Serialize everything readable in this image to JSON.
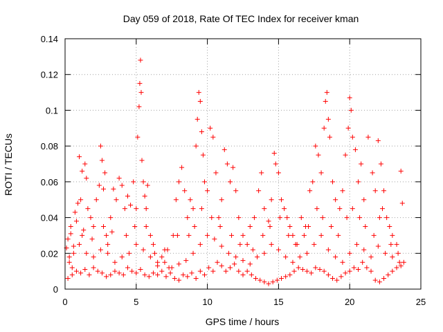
{
  "chart_data": {
    "type": "scatter",
    "title": "Day 059 of 2018, Rate Of TEC Index for receiver kman",
    "xlabel": "GPS time / hours",
    "ylabel": "ROTI / TECUs",
    "xlim": [
      0,
      25
    ],
    "ylim": [
      0,
      0.14
    ],
    "x_ticks": [
      0,
      5,
      10,
      15,
      20,
      25
    ],
    "y_ticks": [
      0,
      0.02,
      0.04,
      0.06,
      0.08,
      0.1,
      0.12,
      0.14
    ],
    "x_tick_labels": [
      "0",
      "5",
      "10",
      "15",
      "20",
      "25"
    ],
    "y_tick_labels": [
      "0",
      "0.02",
      "0.04",
      "0.06",
      "0.08",
      "0.1",
      "0.12",
      "0.14"
    ],
    "grid": true,
    "marker": "+",
    "marker_color": "#ff0000",
    "series": [
      {
        "name": "ROTI",
        "points": [
          [
            0.1,
            0.023
          ],
          [
            0.2,
            0.028
          ],
          [
            0.3,
            0.018
          ],
          [
            0.4,
            0.031
          ],
          [
            0.5,
            0.012
          ],
          [
            0.6,
            0.024
          ],
          [
            0.7,
            0.043
          ],
          [
            0.8,
            0.038
          ],
          [
            0.9,
            0.048
          ],
          [
            1.0,
            0.074
          ],
          [
            1.1,
            0.05
          ],
          [
            1.2,
            0.066
          ],
          [
            1.3,
            0.033
          ],
          [
            1.4,
            0.07
          ],
          [
            1.5,
            0.062
          ],
          [
            1.6,
            0.045
          ],
          [
            1.8,
            0.04
          ],
          [
            2.0,
            0.035
          ],
          [
            2.2,
            0.05
          ],
          [
            2.4,
            0.058
          ],
          [
            2.5,
            0.08
          ],
          [
            2.6,
            0.072
          ],
          [
            2.7,
            0.056
          ],
          [
            2.8,
            0.065
          ],
          [
            2.9,
            0.03
          ],
          [
            3.0,
            0.025
          ],
          [
            3.2,
            0.04
          ],
          [
            3.4,
            0.056
          ],
          [
            3.6,
            0.05
          ],
          [
            3.8,
            0.062
          ],
          [
            4.0,
            0.058
          ],
          [
            4.2,
            0.045
          ],
          [
            4.4,
            0.052
          ],
          [
            4.6,
            0.047
          ],
          [
            4.8,
            0.06
          ],
          [
            5.0,
            0.045
          ],
          [
            5.1,
            0.085
          ],
          [
            5.2,
            0.102
          ],
          [
            5.25,
            0.115
          ],
          [
            5.3,
            0.128
          ],
          [
            5.35,
            0.11
          ],
          [
            5.4,
            0.072
          ],
          [
            5.5,
            0.06
          ],
          [
            5.6,
            0.052
          ],
          [
            5.7,
            0.045
          ],
          [
            5.8,
            0.058
          ],
          [
            6.0,
            0.03
          ],
          [
            6.3,
            0.02
          ],
          [
            6.5,
            0.015
          ],
          [
            6.8,
            0.018
          ],
          [
            7.0,
            0.022
          ],
          [
            7.3,
            0.012
          ],
          [
            7.6,
            0.03
          ],
          [
            7.8,
            0.05
          ],
          [
            8.0,
            0.06
          ],
          [
            8.2,
            0.068
          ],
          [
            8.4,
            0.055
          ],
          [
            8.6,
            0.04
          ],
          [
            8.8,
            0.05
          ],
          [
            9.0,
            0.045
          ],
          [
            9.2,
            0.08
          ],
          [
            9.3,
            0.095
          ],
          [
            9.4,
            0.11
          ],
          [
            9.5,
            0.105
          ],
          [
            9.6,
            0.088
          ],
          [
            9.7,
            0.075
          ],
          [
            9.8,
            0.06
          ],
          [
            10.0,
            0.055
          ],
          [
            10.2,
            0.09
          ],
          [
            10.4,
            0.085
          ],
          [
            10.6,
            0.065
          ],
          [
            10.8,
            0.04
          ],
          [
            11.0,
            0.05
          ],
          [
            11.2,
            0.078
          ],
          [
            11.4,
            0.07
          ],
          [
            11.6,
            0.06
          ],
          [
            11.8,
            0.068
          ],
          [
            12.0,
            0.055
          ],
          [
            12.2,
            0.04
          ],
          [
            12.5,
            0.03
          ],
          [
            12.8,
            0.025
          ],
          [
            13.0,
            0.035
          ],
          [
            13.3,
            0.04
          ],
          [
            13.6,
            0.055
          ],
          [
            13.8,
            0.065
          ],
          [
            14.0,
            0.045
          ],
          [
            14.3,
            0.038
          ],
          [
            14.5,
            0.05
          ],
          [
            14.7,
            0.076
          ],
          [
            14.8,
            0.07
          ],
          [
            15.0,
            0.065
          ],
          [
            15.2,
            0.05
          ],
          [
            15.4,
            0.045
          ],
          [
            15.6,
            0.04
          ],
          [
            15.8,
            0.035
          ],
          [
            16.0,
            0.03
          ],
          [
            16.3,
            0.025
          ],
          [
            16.6,
            0.04
          ],
          [
            16.9,
            0.035
          ],
          [
            17.2,
            0.055
          ],
          [
            17.4,
            0.06
          ],
          [
            17.6,
            0.08
          ],
          [
            17.8,
            0.075
          ],
          [
            18.0,
            0.065
          ],
          [
            18.2,
            0.09
          ],
          [
            18.3,
            0.105
          ],
          [
            18.4,
            0.11
          ],
          [
            18.5,
            0.095
          ],
          [
            18.6,
            0.085
          ],
          [
            18.8,
            0.06
          ],
          [
            19.0,
            0.05
          ],
          [
            19.3,
            0.045
          ],
          [
            19.5,
            0.055
          ],
          [
            19.7,
            0.075
          ],
          [
            19.9,
            0.09
          ],
          [
            20.0,
            0.107
          ],
          [
            20.1,
            0.1
          ],
          [
            20.2,
            0.085
          ],
          [
            20.4,
            0.078
          ],
          [
            20.6,
            0.06
          ],
          [
            20.8,
            0.07
          ],
          [
            21.0,
            0.05
          ],
          [
            21.3,
            0.085
          ],
          [
            21.6,
            0.065
          ],
          [
            21.8,
            0.055
          ],
          [
            22.0,
            0.083
          ],
          [
            22.2,
            0.07
          ],
          [
            22.4,
            0.055
          ],
          [
            22.6,
            0.04
          ],
          [
            22.8,
            0.035
          ],
          [
            23.0,
            0.03
          ],
          [
            23.3,
            0.025
          ],
          [
            23.6,
            0.066
          ],
          [
            23.7,
            0.048
          ],
          [
            23.8,
            0.015
          ],
          [
            0.2,
            0.006
          ],
          [
            0.5,
            0.008
          ],
          [
            0.8,
            0.01
          ],
          [
            1.1,
            0.009
          ],
          [
            1.4,
            0.011
          ],
          [
            1.7,
            0.008
          ],
          [
            2.0,
            0.012
          ],
          [
            2.3,
            0.01
          ],
          [
            2.6,
            0.009
          ],
          [
            2.9,
            0.007
          ],
          [
            3.2,
            0.008
          ],
          [
            3.5,
            0.01
          ],
          [
            3.8,
            0.009
          ],
          [
            4.1,
            0.008
          ],
          [
            4.4,
            0.012
          ],
          [
            4.7,
            0.01
          ],
          [
            5.0,
            0.009
          ],
          [
            5.3,
            0.011
          ],
          [
            5.6,
            0.008
          ],
          [
            5.9,
            0.007
          ],
          [
            6.2,
            0.009
          ],
          [
            6.5,
            0.008
          ],
          [
            6.8,
            0.01
          ],
          [
            7.1,
            0.007
          ],
          [
            7.4,
            0.009
          ],
          [
            7.7,
            0.006
          ],
          [
            8.0,
            0.005
          ],
          [
            8.3,
            0.008
          ],
          [
            8.6,
            0.007
          ],
          [
            8.9,
            0.009
          ],
          [
            9.2,
            0.006
          ],
          [
            9.5,
            0.01
          ],
          [
            9.8,
            0.008
          ],
          [
            10.1,
            0.012
          ],
          [
            10.4,
            0.01
          ],
          [
            10.7,
            0.015
          ],
          [
            11.0,
            0.013
          ],
          [
            11.3,
            0.01
          ],
          [
            11.6,
            0.012
          ],
          [
            11.9,
            0.014
          ],
          [
            12.2,
            0.01
          ],
          [
            12.5,
            0.008
          ],
          [
            12.8,
            0.01
          ],
          [
            13.1,
            0.008
          ],
          [
            13.4,
            0.006
          ],
          [
            13.7,
            0.005
          ],
          [
            14.0,
            0.004
          ],
          [
            14.3,
            0.003
          ],
          [
            14.6,
            0.004
          ],
          [
            14.9,
            0.005
          ],
          [
            15.2,
            0.006
          ],
          [
            15.5,
            0.007
          ],
          [
            15.8,
            0.008
          ],
          [
            16.1,
            0.01
          ],
          [
            16.4,
            0.012
          ],
          [
            16.7,
            0.011
          ],
          [
            17.0,
            0.01
          ],
          [
            17.3,
            0.009
          ],
          [
            17.6,
            0.012
          ],
          [
            17.9,
            0.011
          ],
          [
            18.2,
            0.01
          ],
          [
            18.5,
            0.008
          ],
          [
            18.8,
            0.006
          ],
          [
            19.1,
            0.005
          ],
          [
            19.4,
            0.007
          ],
          [
            19.7,
            0.009
          ],
          [
            20.0,
            0.01
          ],
          [
            20.3,
            0.012
          ],
          [
            20.6,
            0.011
          ],
          [
            20.9,
            0.015
          ],
          [
            21.2,
            0.012
          ],
          [
            21.5,
            0.01
          ],
          [
            21.8,
            0.005
          ],
          [
            22.1,
            0.004
          ],
          [
            22.4,
            0.006
          ],
          [
            22.7,
            0.008
          ],
          [
            23.0,
            0.01
          ],
          [
            23.3,
            0.012
          ],
          [
            23.6,
            0.013
          ],
          [
            0.3,
            0.015
          ],
          [
            0.6,
            0.02
          ],
          [
            1.0,
            0.025
          ],
          [
            1.5,
            0.02
          ],
          [
            2.0,
            0.018
          ],
          [
            2.5,
            0.022
          ],
          [
            3.0,
            0.02
          ],
          [
            3.5,
            0.015
          ],
          [
            4.0,
            0.018
          ],
          [
            4.5,
            0.02
          ],
          [
            5.0,
            0.025
          ],
          [
            5.5,
            0.022
          ],
          [
            6.0,
            0.018
          ],
          [
            6.5,
            0.013
          ],
          [
            7.0,
            0.015
          ],
          [
            7.5,
            0.012
          ],
          [
            8.0,
            0.014
          ],
          [
            8.5,
            0.016
          ],
          [
            9.0,
            0.02
          ],
          [
            9.5,
            0.025
          ],
          [
            10.0,
            0.03
          ],
          [
            10.5,
            0.028
          ],
          [
            11.0,
            0.024
          ],
          [
            11.5,
            0.02
          ],
          [
            12.0,
            0.018
          ],
          [
            12.5,
            0.016
          ],
          [
            13.0,
            0.014
          ],
          [
            13.5,
            0.018
          ],
          [
            14.0,
            0.02
          ],
          [
            14.5,
            0.025
          ],
          [
            15.0,
            0.022
          ],
          [
            15.5,
            0.018
          ],
          [
            16.0,
            0.015
          ],
          [
            16.5,
            0.018
          ],
          [
            17.0,
            0.02
          ],
          [
            17.5,
            0.025
          ],
          [
            18.0,
            0.03
          ],
          [
            18.5,
            0.022
          ],
          [
            19.0,
            0.018
          ],
          [
            19.5,
            0.015
          ],
          [
            20.0,
            0.02
          ],
          [
            20.5,
            0.025
          ],
          [
            21.0,
            0.022
          ],
          [
            21.5,
            0.018
          ],
          [
            22.0,
            0.024
          ],
          [
            22.5,
            0.02
          ],
          [
            23.0,
            0.018
          ],
          [
            23.5,
            0.015
          ],
          [
            0.4,
            0.035
          ],
          [
            1.2,
            0.03
          ],
          [
            1.9,
            0.028
          ],
          [
            2.7,
            0.035
          ],
          [
            3.3,
            0.032
          ],
          [
            4.3,
            0.03
          ],
          [
            4.9,
            0.035
          ],
          [
            5.7,
            0.035
          ],
          [
            6.2,
            0.025
          ],
          [
            7.2,
            0.022
          ],
          [
            7.9,
            0.03
          ],
          [
            8.7,
            0.03
          ],
          [
            9.1,
            0.035
          ],
          [
            9.6,
            0.045
          ],
          [
            10.3,
            0.04
          ],
          [
            10.9,
            0.035
          ],
          [
            11.7,
            0.03
          ],
          [
            12.3,
            0.025
          ],
          [
            13.2,
            0.022
          ],
          [
            13.9,
            0.03
          ],
          [
            14.4,
            0.035
          ],
          [
            15.1,
            0.04
          ],
          [
            15.7,
            0.03
          ],
          [
            16.2,
            0.025
          ],
          [
            16.8,
            0.03
          ],
          [
            17.1,
            0.035
          ],
          [
            17.7,
            0.045
          ],
          [
            18.1,
            0.04
          ],
          [
            18.7,
            0.035
          ],
          [
            19.2,
            0.03
          ],
          [
            19.8,
            0.04
          ],
          [
            20.2,
            0.045
          ],
          [
            20.7,
            0.04
          ],
          [
            21.1,
            0.035
          ],
          [
            21.7,
            0.03
          ],
          [
            22.1,
            0.04
          ],
          [
            22.3,
            0.045
          ],
          [
            22.9,
            0.025
          ],
          [
            23.4,
            0.02
          ]
        ]
      }
    ]
  }
}
